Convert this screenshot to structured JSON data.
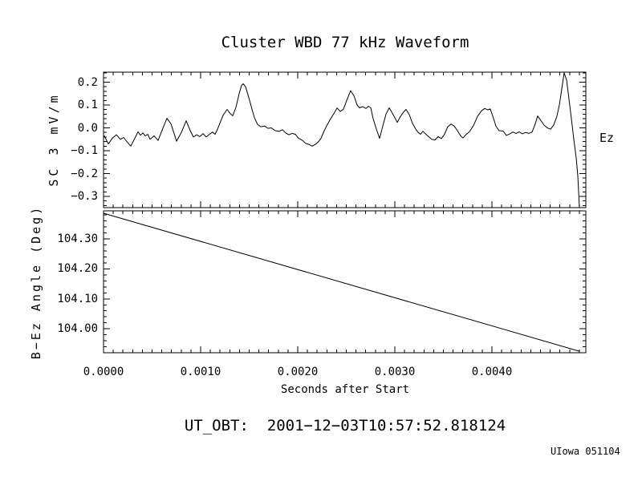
{
  "chart_data": {
    "type": "line",
    "title": "Cluster WBD 77 kHz Waveform",
    "xlabel": "Seconds after Start",
    "xlim": [
      0,
      0.004967
    ],
    "xticks": {
      "values": [
        0,
        0.001,
        0.002,
        0.003,
        0.004
      ],
      "labels": [
        "0.0000",
        "0.0010",
        "0.0020",
        "0.0030",
        "0.0040"
      ]
    },
    "x_minor_step": 0.0001,
    "grid": false,
    "legend": "none",
    "annotations": {
      "ut_obt": "UT_OBT:  2001−12−03T10:57:52.818124",
      "credit": "UIowa 051104"
    },
    "panels": [
      {
        "name": "waveform",
        "ylabel": "SC 3 mV/m",
        "right_label": "Ez",
        "ylim": [
          -0.349,
          0.244
        ],
        "yticks": {
          "values": [
            0.2,
            0.1,
            0.0,
            -0.1,
            -0.2,
            -0.3
          ],
          "labels": [
            "0.2",
            "0.1",
            "0.0",
            "−0.1",
            "−0.2",
            "−0.3"
          ]
        },
        "y_minor_step": 0.02,
        "series": [
          {
            "name": "waveform",
            "label": "Ez",
            "points": [
              [
                8e-06,
                -0.035
              ],
              [
                5e-05,
                -0.07
              ],
              [
                9.1e-05,
                -0.045
              ],
              [
                0.000132,
                -0.03
              ],
              [
                0.000174,
                -0.05
              ],
              [
                0.000207,
                -0.042
              ],
              [
                0.00024,
                -0.06
              ],
              [
                0.000281,
                -0.08
              ],
              [
                0.000322,
                -0.045
              ],
              [
                0.000355,
                -0.017
              ],
              [
                0.00038,
                -0.032
              ],
              [
                0.000405,
                -0.022
              ],
              [
                0.00043,
                -0.035
              ],
              [
                0.000455,
                -0.028
              ],
              [
                0.000479,
                -0.05
              ],
              [
                0.000521,
                -0.035
              ],
              [
                0.000562,
                -0.055
              ],
              [
                0.000603,
                -0.01
              ],
              [
                0.000653,
                0.042
              ],
              [
                0.000694,
                0.018
              ],
              [
                0.000752,
                -0.058
              ],
              [
                0.000802,
                -0.02
              ],
              [
                0.000851,
                0.031
              ],
              [
                0.000893,
                -0.012
              ],
              [
                0.000926,
                -0.04
              ],
              [
                0.000959,
                -0.03
              ],
              [
                0.000992,
                -0.038
              ],
              [
                0.001025,
                -0.025
              ],
              [
                0.001058,
                -0.04
              ],
              [
                0.001091,
                -0.028
              ],
              [
                0.001124,
                -0.018
              ],
              [
                0.001149,
                -0.028
              ],
              [
                0.001174,
                -0.005
              ],
              [
                0.001198,
                0.02
              ],
              [
                0.001231,
                0.055
              ],
              [
                0.001273,
                0.081
              ],
              [
                0.001306,
                0.062
              ],
              [
                0.001331,
                0.053
              ],
              [
                0.001364,
                0.09
              ],
              [
                0.001397,
                0.15
              ],
              [
                0.001421,
                0.185
              ],
              [
                0.001438,
                0.193
              ],
              [
                0.001463,
                0.18
              ],
              [
                0.001488,
                0.145
              ],
              [
                0.001521,
                0.095
              ],
              [
                0.001554,
                0.045
              ],
              [
                0.001587,
                0.015
              ],
              [
                0.00162,
                0.005
              ],
              [
                0.001661,
                0.008
              ],
              [
                0.001694,
                -0.002
              ],
              [
                0.001727,
                0.0
              ],
              [
                0.001769,
                -0.012
              ],
              [
                0.00181,
                -0.015
              ],
              [
                0.001843,
                -0.008
              ],
              [
                0.001876,
                -0.022
              ],
              [
                0.001909,
                -0.03
              ],
              [
                0.001942,
                -0.024
              ],
              [
                0.001975,
                -0.028
              ],
              [
                0.002008,
                -0.045
              ],
              [
                0.00205,
                -0.055
              ],
              [
                0.002083,
                -0.068
              ],
              [
                0.002116,
                -0.072
              ],
              [
                0.002149,
                -0.08
              ],
              [
                0.002182,
                -0.072
              ],
              [
                0.002215,
                -0.06
              ],
              [
                0.00224,
                -0.046
              ],
              [
                0.002273,
                -0.012
              ],
              [
                0.002306,
                0.015
              ],
              [
                0.002339,
                0.04
              ],
              [
                0.002372,
                0.062
              ],
              [
                0.002405,
                0.087
              ],
              [
                0.002438,
                0.072
              ],
              [
                0.002471,
                0.082
              ],
              [
                0.002504,
                0.12
              ],
              [
                0.002545,
                0.163
              ],
              [
                0.002579,
                0.14
              ],
              [
                0.002612,
                0.1
              ],
              [
                0.002636,
                0.088
              ],
              [
                0.00267,
                0.093
              ],
              [
                0.002703,
                0.085
              ],
              [
                0.002727,
                0.095
              ],
              [
                0.002752,
                0.088
              ],
              [
                0.002777,
                0.04
              ],
              [
                0.00281,
                -0.005
              ],
              [
                0.002843,
                -0.046
              ],
              [
                0.002876,
                0.008
              ],
              [
                0.002909,
                0.06
              ],
              [
                0.002942,
                0.088
              ],
              [
                0.002967,
                0.07
              ],
              [
                0.003,
                0.045
              ],
              [
                0.003025,
                0.024
              ],
              [
                0.003058,
                0.05
              ],
              [
                0.003091,
                0.07
              ],
              [
                0.003116,
                0.081
              ],
              [
                0.003149,
                0.058
              ],
              [
                0.003182,
                0.02
              ],
              [
                0.003215,
                -0.005
              ],
              [
                0.00324,
                -0.02
              ],
              [
                0.003264,
                -0.028
              ],
              [
                0.003289,
                -0.015
              ],
              [
                0.003314,
                -0.025
              ],
              [
                0.003347,
                -0.038
              ],
              [
                0.00338,
                -0.05
              ],
              [
                0.003413,
                -0.053
              ],
              [
                0.003446,
                -0.038
              ],
              [
                0.003479,
                -0.047
              ],
              [
                0.003512,
                -0.028
              ],
              [
                0.003545,
                0.005
              ],
              [
                0.003579,
                0.017
              ],
              [
                0.003612,
                0.008
              ],
              [
                0.003645,
                -0.012
              ],
              [
                0.003678,
                -0.035
              ],
              [
                0.003702,
                -0.044
              ],
              [
                0.003736,
                -0.028
              ],
              [
                0.003769,
                -0.017
              ],
              [
                0.00381,
                0.01
              ],
              [
                0.003851,
                0.05
              ],
              [
                0.003893,
                0.075
              ],
              [
                0.003926,
                0.085
              ],
              [
                0.003959,
                0.079
              ],
              [
                0.003983,
                0.083
              ],
              [
                0.004017,
                0.04
              ],
              [
                0.004041,
                0.007
              ],
              [
                0.004074,
                -0.012
              ],
              [
                0.004116,
                -0.014
              ],
              [
                0.004149,
                -0.033
              ],
              [
                0.004182,
                -0.027
              ],
              [
                0.004215,
                -0.018
              ],
              [
                0.004248,
                -0.024
              ],
              [
                0.004281,
                -0.017
              ],
              [
                0.004314,
                -0.026
              ],
              [
                0.004347,
                -0.02
              ],
              [
                0.00438,
                -0.024
              ],
              [
                0.004413,
                -0.018
              ],
              [
                0.004438,
                0.008
              ],
              [
                0.004471,
                0.052
              ],
              [
                0.004504,
                0.032
              ],
              [
                0.004537,
                0.012
              ],
              [
                0.00457,
                0.0
              ],
              [
                0.004603,
                -0.006
              ],
              [
                0.004636,
                0.012
              ],
              [
                0.004669,
                0.05
              ],
              [
                0.004694,
                0.1
              ],
              [
                0.004719,
                0.17
              ],
              [
                0.004744,
                0.241
              ],
              [
                0.004769,
                0.21
              ],
              [
                0.004793,
                0.13
              ],
              [
                0.004818,
                0.04
              ],
              [
                0.004843,
                -0.05
              ],
              [
                0.004868,
                -0.13
              ],
              [
                0.004884,
                -0.21
              ],
              [
                0.004901,
                -0.349
              ]
            ]
          }
        ]
      },
      {
        "name": "angle",
        "ylabel": "B−Ez Angle (Deg)",
        "ylim": [
          103.92,
          104.394
        ],
        "yticks": {
          "values": [
            104.3,
            104.2,
            104.1,
            104.0
          ],
          "labels": [
            "104.30",
            "104.20",
            "104.10",
            "104.00"
          ]
        },
        "y_minor_step": 0.02,
        "series": [
          {
            "name": "angle",
            "label": "B-Ez Angle",
            "points": [
              [
                0.0,
                104.386
              ],
              [
                0.0049,
                103.925
              ]
            ]
          }
        ]
      }
    ]
  }
}
